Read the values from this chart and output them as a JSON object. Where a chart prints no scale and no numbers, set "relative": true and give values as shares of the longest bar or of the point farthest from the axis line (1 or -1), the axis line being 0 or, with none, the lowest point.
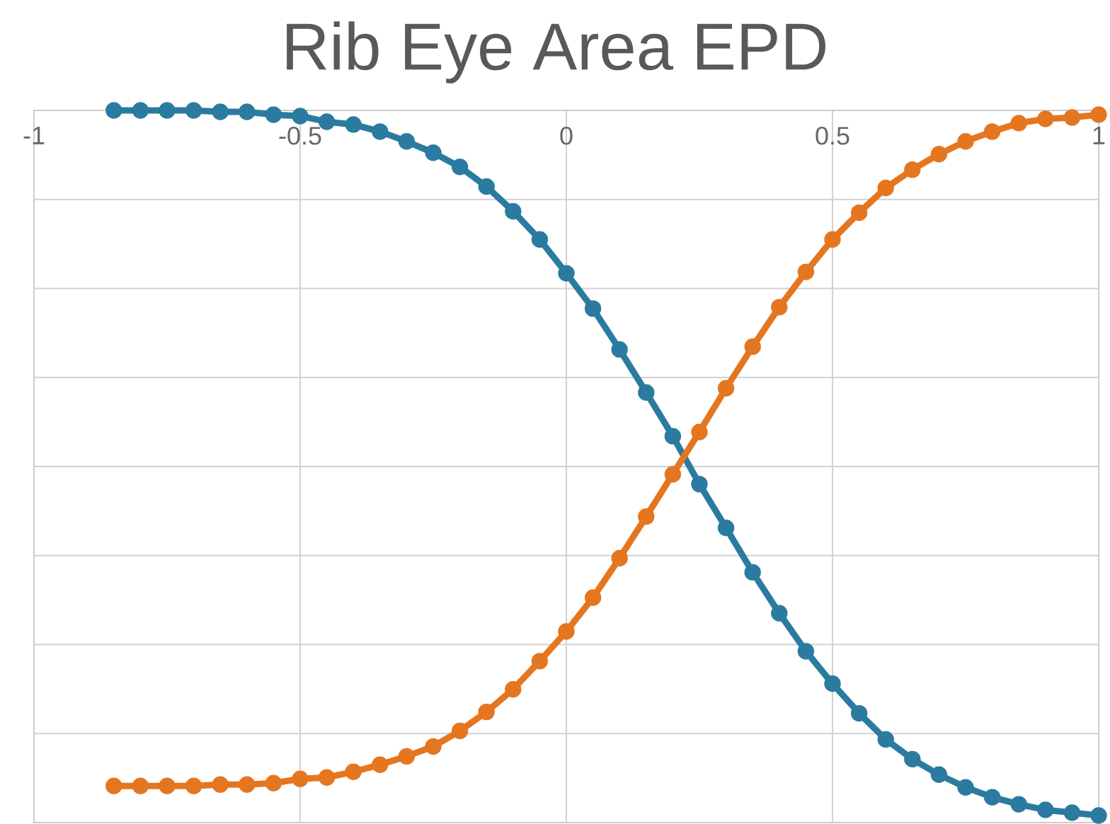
{
  "chart_data": {
    "type": "line",
    "title": "Rib Eye Area EPD",
    "relative": true,
    "x": [
      -0.85,
      -0.8,
      -0.75,
      -0.7,
      -0.65,
      -0.6,
      -0.55,
      -0.5,
      -0.45,
      -0.4,
      -0.35,
      -0.3,
      -0.25,
      -0.2,
      -0.15,
      -0.1,
      -0.05,
      0,
      0.05,
      0.1,
      0.15,
      0.2,
      0.25,
      0.3,
      0.35,
      0.4,
      0.45,
      0.5,
      0.55,
      0.6,
      0.65,
      0.7,
      0.75,
      0.8,
      0.85,
      0.9,
      0.95,
      1.0
    ],
    "series": [
      {
        "color": "#2b7ba0",
        "values": [
          0,
          0,
          0,
          0,
          -0.002,
          -0.002,
          -0.006,
          -0.008,
          -0.016,
          -0.02,
          -0.03,
          -0.044,
          -0.06,
          -0.08,
          -0.108,
          -0.143,
          -0.183,
          -0.231,
          -0.281,
          -0.339,
          -0.4,
          -0.462,
          -0.53,
          -0.592,
          -0.655,
          -0.713,
          -0.767,
          -0.813,
          -0.855,
          -0.892,
          -0.92,
          -0.942,
          -0.96,
          -0.974,
          -0.984,
          -0.992,
          -0.996,
          -1
        ]
      },
      {
        "color": "#e57620",
        "values": [
          -0.958,
          -0.958,
          -0.958,
          -0.958,
          -0.956,
          -0.956,
          -0.954,
          -0.948,
          -0.946,
          -0.938,
          -0.928,
          -0.916,
          -0.902,
          -0.88,
          -0.853,
          -0.821,
          -0.781,
          -0.739,
          -0.691,
          -0.635,
          -0.576,
          -0.516,
          -0.456,
          -0.394,
          -0.335,
          -0.279,
          -0.229,
          -0.183,
          -0.145,
          -0.11,
          -0.084,
          -0.062,
          -0.044,
          -0.03,
          -0.018,
          -0.012,
          -0.01,
          -0.006
        ]
      }
    ],
    "xlim": [
      -1,
      1
    ],
    "xticks": [
      -1,
      -0.5,
      0,
      0.5,
      1
    ],
    "grid": true,
    "marker": "circle",
    "line_style": "solid"
  }
}
